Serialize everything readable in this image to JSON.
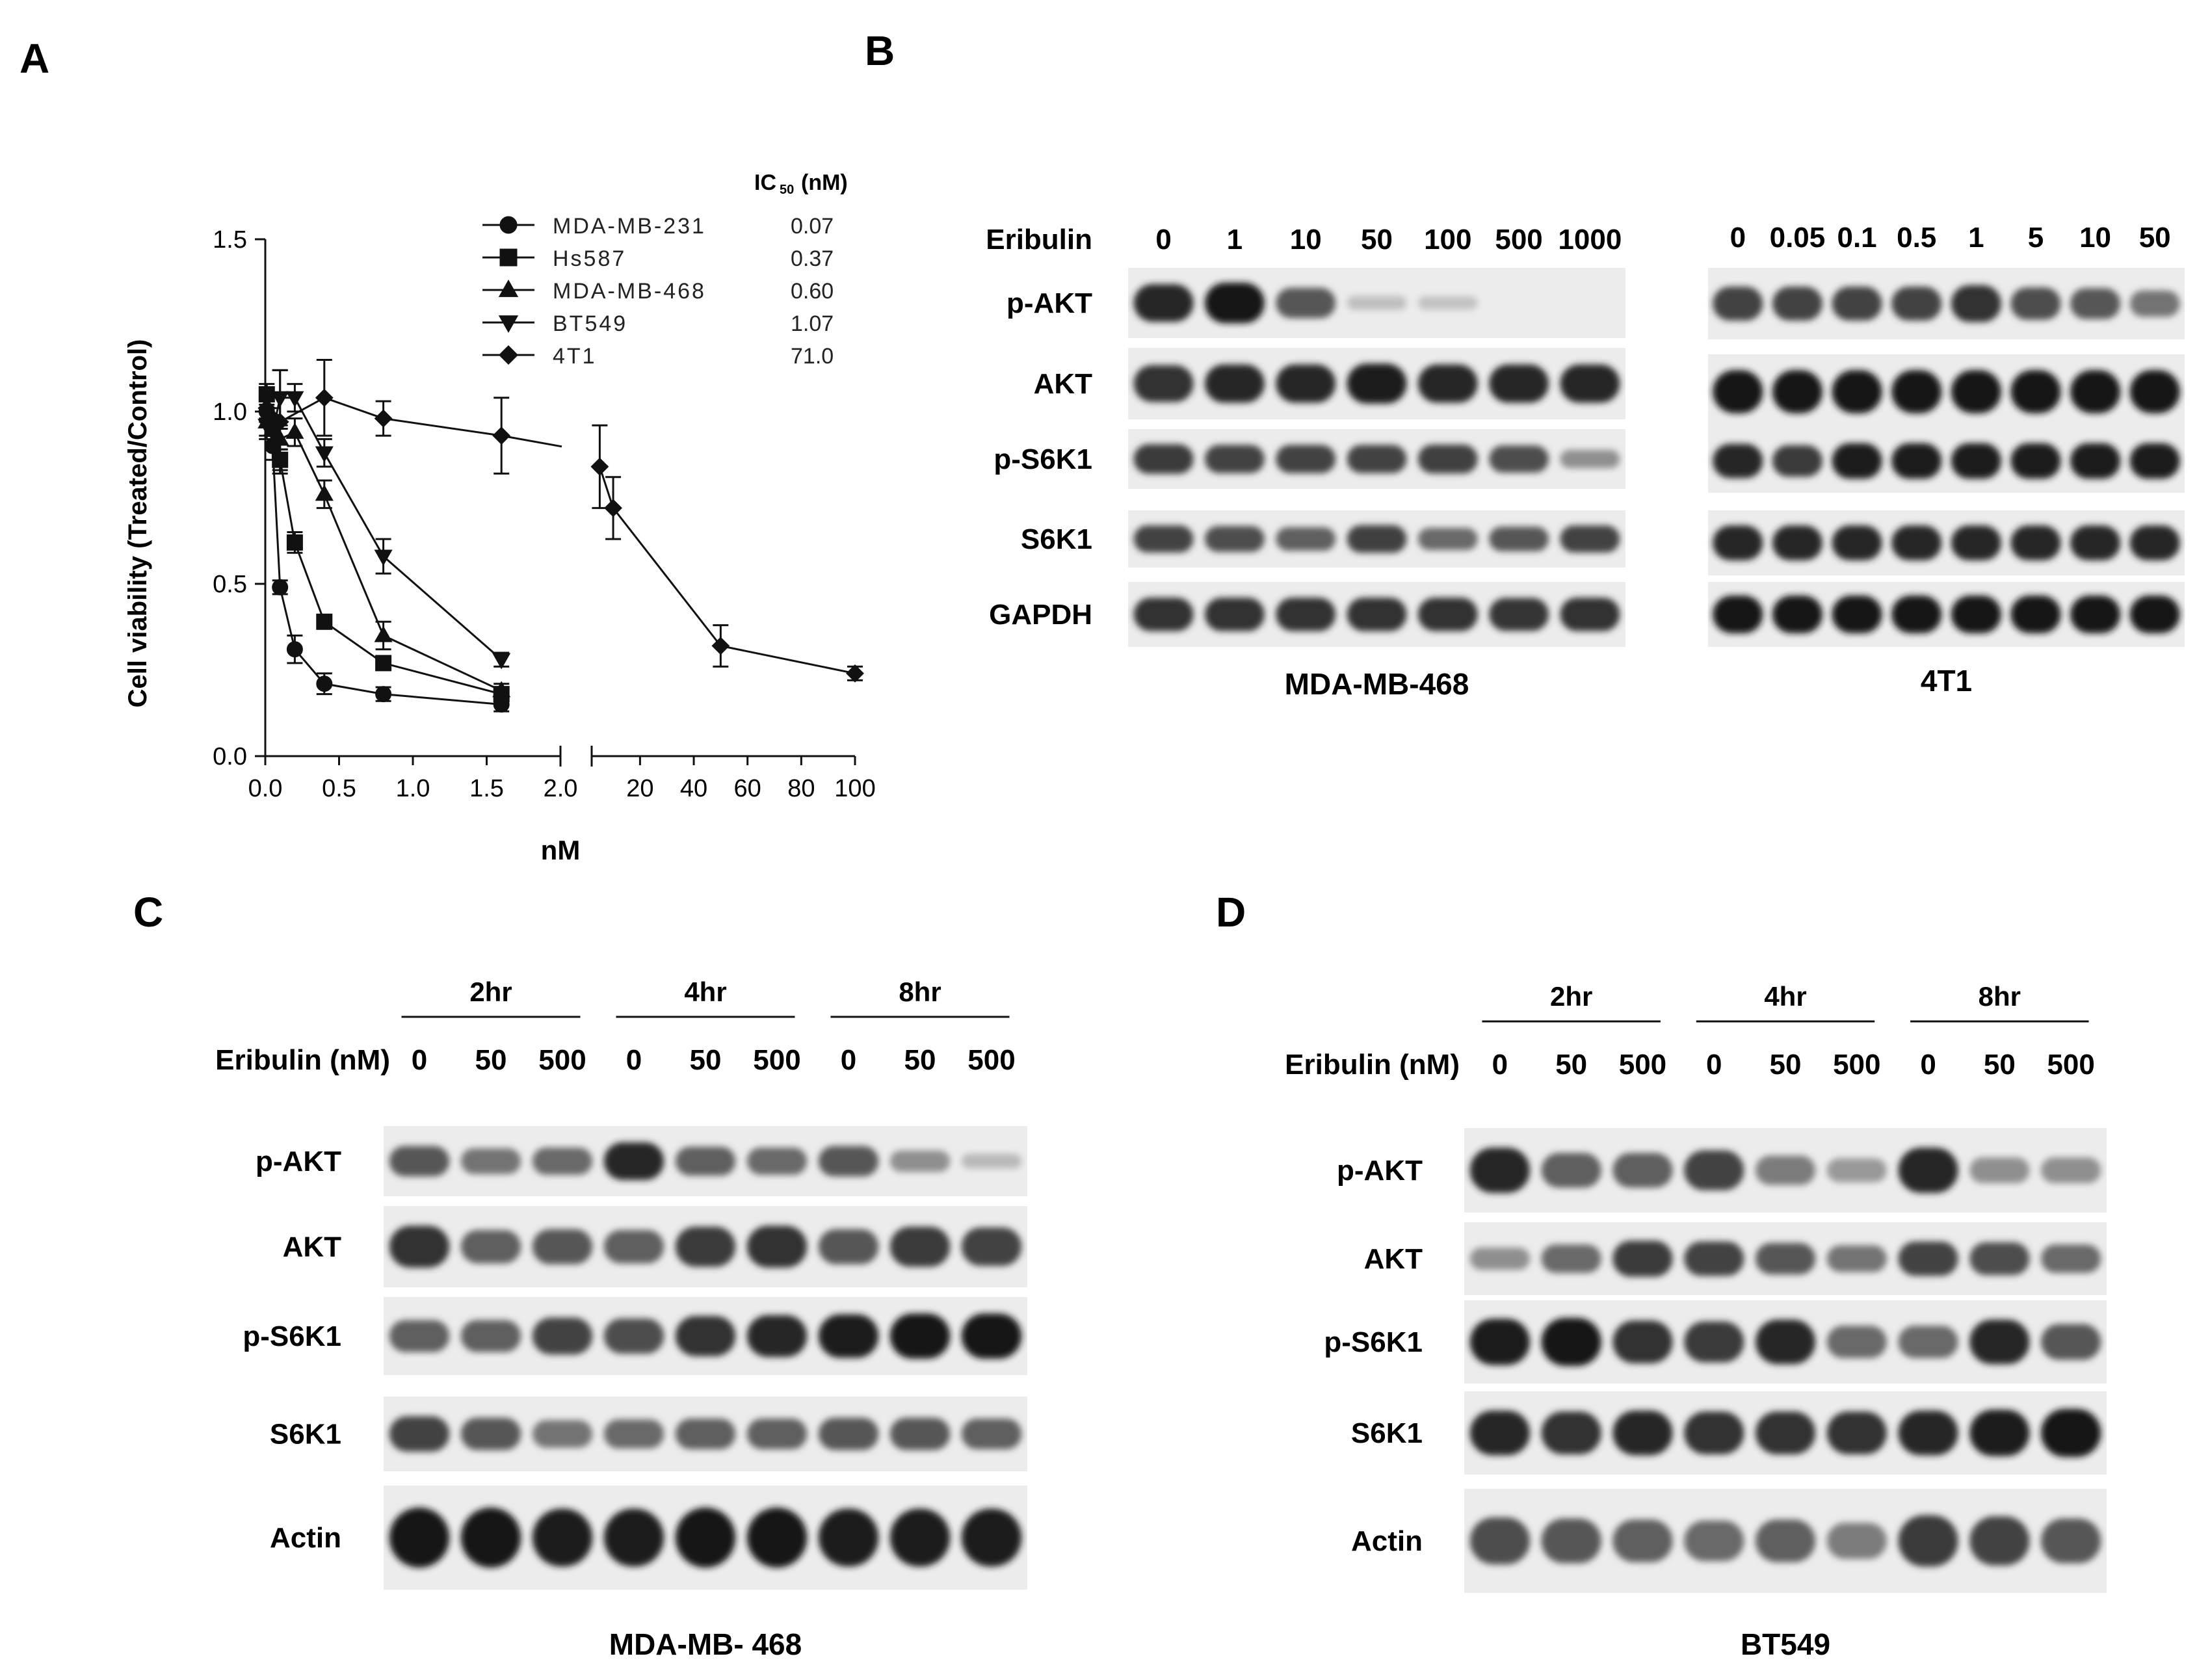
{
  "panels": {
    "A": "A",
    "B": "B",
    "C": "C",
    "D": "D"
  },
  "chart_data": {
    "type": "line",
    "xlabel": "nM",
    "ylabel": "Cell viability (Treated/Control)",
    "ylim": [
      0,
      1.5
    ],
    "yticks": [
      0.0,
      0.5,
      1.0,
      1.5
    ],
    "ytick_labels": [
      "0.0",
      "0.5",
      "1.0",
      "1.5"
    ],
    "x_segment_1": {
      "range": [
        0,
        2.0
      ],
      "ticks": [
        0.0,
        0.5,
        1.0,
        1.5,
        2.0
      ],
      "tick_labels": [
        "0.0",
        "0.5",
        "1.0",
        "1.5",
        "2.0"
      ]
    },
    "x_segment_2": {
      "range": [
        2,
        100
      ],
      "ticks": [
        20,
        40,
        60,
        80,
        100
      ],
      "tick_labels": [
        "20",
        "40",
        "60",
        "80",
        "100"
      ]
    },
    "ic50_header": "IC50 (nM)",
    "series": [
      {
        "name": "MDA-MB-231",
        "marker": "circle",
        "ic50": "0.07",
        "x": [
          0.01,
          0.05,
          0.1,
          0.2,
          0.4,
          0.8,
          1.6
        ],
        "y": [
          1.0,
          0.9,
          0.49,
          0.31,
          0.21,
          0.18,
          0.15
        ],
        "err": [
          0.03,
          0.04,
          0.02,
          0.04,
          0.03,
          0.02,
          0.02
        ]
      },
      {
        "name": "Hs587",
        "marker": "square",
        "ic50": "0.37",
        "x": [
          0.01,
          0.05,
          0.1,
          0.2,
          0.4,
          0.8,
          1.6
        ],
        "y": [
          1.05,
          0.95,
          0.86,
          0.62,
          0.39,
          0.27,
          0.18
        ],
        "err": [
          0.03,
          0.04,
          0.03,
          0.03,
          0.02,
          0.02,
          0.02
        ]
      },
      {
        "name": "MDA-MB-468",
        "marker": "triangle-up",
        "ic50": "0.60",
        "x": [
          0.01,
          0.05,
          0.1,
          0.2,
          0.4,
          0.8,
          1.6
        ],
        "y": [
          0.97,
          0.95,
          0.92,
          0.94,
          0.76,
          0.35,
          0.19
        ],
        "err": [
          0.04,
          0.04,
          0.03,
          0.04,
          0.04,
          0.04,
          0.02
        ]
      },
      {
        "name": "BT549",
        "marker": "triangle-down",
        "ic50": "1.07",
        "x": [
          0.01,
          0.05,
          0.1,
          0.2,
          0.4,
          0.8,
          1.6
        ],
        "y": [
          0.96,
          0.94,
          1.04,
          1.04,
          0.88,
          0.58,
          0.28
        ],
        "err": [
          0.04,
          0.04,
          0.08,
          0.04,
          0.04,
          0.05,
          0.02
        ]
      },
      {
        "name": "4T1",
        "marker": "diamond",
        "ic50": "71.0",
        "x": [
          0.01,
          0.05,
          0.1,
          0.4,
          0.8,
          1.6,
          5,
          10,
          50,
          100
        ],
        "y": [
          1.01,
          0.98,
          0.97,
          1.04,
          0.98,
          0.93,
          0.84,
          0.72,
          0.32,
          0.24
        ],
        "err": [
          0.03,
          0.03,
          0.15,
          0.11,
          0.05,
          0.11,
          0.12,
          0.09,
          0.06,
          0.02
        ]
      }
    ]
  },
  "blot_B1": {
    "treatment_label": "Eribulin",
    "lanes": [
      "0",
      "1",
      "10",
      "50",
      "100",
      "500",
      "1000"
    ],
    "rows": [
      {
        "label": "p-AKT",
        "intensity": [
          0.85,
          0.95,
          0.6,
          0.05,
          0.03,
          0.0,
          0.0
        ]
      },
      {
        "label": "AKT",
        "intensity": [
          0.8,
          0.85,
          0.85,
          0.9,
          0.85,
          0.85,
          0.85
        ]
      },
      {
        "label": "p-S6K1",
        "intensity": [
          0.75,
          0.7,
          0.7,
          0.7,
          0.72,
          0.65,
          0.3
        ]
      },
      {
        "label": "S6K1",
        "intensity": [
          0.7,
          0.65,
          0.55,
          0.72,
          0.5,
          0.6,
          0.7
        ]
      },
      {
        "label": "GAPDH",
        "intensity": [
          0.8,
          0.8,
          0.8,
          0.8,
          0.8,
          0.78,
          0.8
        ]
      }
    ],
    "cell_line": "MDA-MB-468"
  },
  "blot_B2": {
    "lanes": [
      "0",
      "0.05",
      "0.1",
      "0.5",
      "1",
      "5",
      "10",
      "50"
    ],
    "rows": [
      {
        "label": "p-AKT",
        "intensity": [
          0.7,
          0.7,
          0.7,
          0.7,
          0.8,
          0.65,
          0.6,
          0.45
        ]
      },
      {
        "label": "AKT",
        "intensity": [
          0.95,
          0.95,
          0.95,
          0.95,
          0.95,
          0.95,
          0.95,
          0.95
        ]
      },
      {
        "label": "p-S6K1",
        "intensity": [
          0.85,
          0.75,
          0.9,
          0.9,
          0.9,
          0.9,
          0.9,
          0.9
        ]
      },
      {
        "label": "S6K1",
        "intensity": [
          0.85,
          0.85,
          0.85,
          0.85,
          0.85,
          0.85,
          0.85,
          0.85
        ]
      },
      {
        "label": "GAPDH",
        "intensity": [
          0.95,
          0.95,
          0.95,
          0.95,
          0.95,
          0.95,
          0.95,
          0.95
        ]
      }
    ],
    "cell_line": "4T1"
  },
  "blot_C": {
    "time_groups": [
      "2hr",
      "4hr",
      "8hr"
    ],
    "treatment_label": "Eribulin (nM)",
    "lanes": [
      "0",
      "50",
      "500",
      "0",
      "50",
      "500",
      "0",
      "50",
      "500"
    ],
    "rows": [
      {
        "label": "p-AKT",
        "intensity": [
          0.6,
          0.45,
          0.5,
          0.85,
          0.55,
          0.5,
          0.6,
          0.3,
          0.08
        ]
      },
      {
        "label": "AKT",
        "intensity": [
          0.8,
          0.55,
          0.6,
          0.55,
          0.75,
          0.8,
          0.6,
          0.75,
          0.7
        ]
      },
      {
        "label": "p-S6K1",
        "intensity": [
          0.55,
          0.55,
          0.7,
          0.65,
          0.8,
          0.85,
          0.9,
          0.95,
          0.95
        ]
      },
      {
        "label": "S6K1",
        "intensity": [
          0.7,
          0.6,
          0.45,
          0.5,
          0.55,
          0.55,
          0.6,
          0.6,
          0.55
        ]
      },
      {
        "label": "Actin",
        "intensity": [
          0.95,
          0.95,
          0.9,
          0.9,
          0.95,
          0.95,
          0.9,
          0.9,
          0.9
        ]
      }
    ],
    "cell_line": "MDA-MB- 468"
  },
  "blot_D": {
    "time_groups": [
      "2hr",
      "4hr",
      "8hr"
    ],
    "treatment_label": "Eribulin (nM)",
    "lanes": [
      "0",
      "50",
      "500",
      "0",
      "50",
      "500",
      "0",
      "50",
      "500"
    ],
    "rows": [
      {
        "label": "p-AKT",
        "intensity": [
          0.85,
          0.55,
          0.55,
          0.7,
          0.4,
          0.25,
          0.85,
          0.3,
          0.3
        ]
      },
      {
        "label": "AKT",
        "intensity": [
          0.3,
          0.5,
          0.75,
          0.7,
          0.6,
          0.45,
          0.7,
          0.65,
          0.5
        ]
      },
      {
        "label": "p-S6K1",
        "intensity": [
          0.9,
          0.95,
          0.8,
          0.75,
          0.85,
          0.5,
          0.5,
          0.85,
          0.6
        ]
      },
      {
        "label": "S6K1",
        "intensity": [
          0.85,
          0.8,
          0.85,
          0.8,
          0.8,
          0.8,
          0.85,
          0.9,
          0.95
        ]
      },
      {
        "label": "Actin",
        "intensity": [
          0.65,
          0.6,
          0.55,
          0.5,
          0.55,
          0.4,
          0.75,
          0.7,
          0.6
        ]
      }
    ],
    "cell_line": "BT549"
  }
}
